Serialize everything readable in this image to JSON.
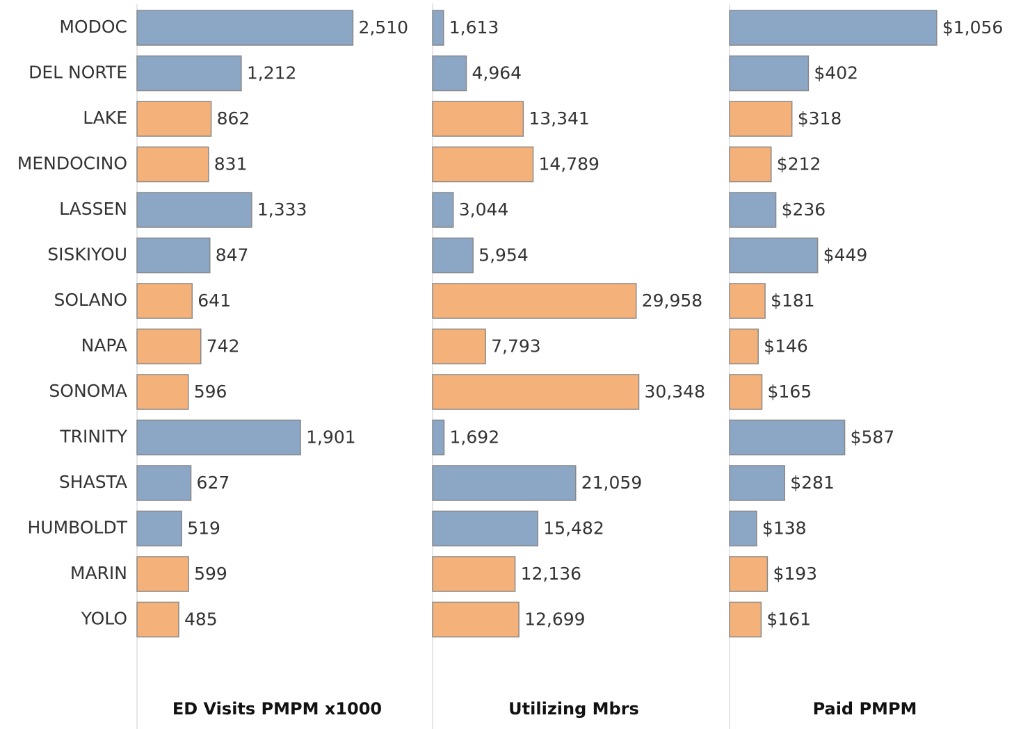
{
  "chart_data": {
    "type": "bar",
    "orientation": "horizontal",
    "categories": [
      "MODOC",
      "DEL NORTE",
      "LAKE",
      "MENDOCINO",
      "LASSEN",
      "SISKIYOU",
      "SOLANO",
      "NAPA",
      "SONOMA",
      "TRINITY",
      "SHASTA",
      "HUMBOLDT",
      "MARIN",
      "YOLO"
    ],
    "colors": [
      "#8ca6c6",
      "#8ca6c6",
      "#f4b27a",
      "#f4b27a",
      "#8ca6c6",
      "#8ca6c6",
      "#f4b27a",
      "#f4b27a",
      "#f4b27a",
      "#8ca6c6",
      "#8ca6c6",
      "#8ca6c6",
      "#f4b27a",
      "#f4b27a"
    ],
    "panels": [
      {
        "xlabel": "ED Visits PMPM x1000",
        "xlim": [
          0,
          3420
        ],
        "values": [
          2510,
          1212,
          862,
          831,
          1333,
          847,
          641,
          742,
          596,
          1901,
          627,
          519,
          599,
          485
        ],
        "value_labels": [
          "2,510",
          "1,212",
          "862",
          "831",
          "1,333",
          "847",
          "641",
          "742",
          "596",
          "1,901",
          "627",
          "519",
          "599",
          "485"
        ]
      },
      {
        "xlabel": "Utilizing Mbrs",
        "xlim": [
          0,
          43600
        ],
        "values": [
          1613,
          4964,
          13341,
          14789,
          3044,
          5954,
          29958,
          7793,
          30348,
          1692,
          21059,
          15482,
          12136,
          12699
        ],
        "value_labels": [
          "1,613",
          "4,964",
          "13,341",
          "14,789",
          "3,044",
          "5,954",
          "29,958",
          "7,793",
          "30,348",
          "1,692",
          "21,059",
          "15,482",
          "12,136",
          "12,699"
        ]
      },
      {
        "xlabel": "Paid PMPM",
        "xlim": [
          0,
          1450
        ],
        "values": [
          1056,
          402,
          318,
          212,
          236,
          449,
          181,
          146,
          165,
          587,
          281,
          138,
          193,
          161
        ],
        "value_labels": [
          "$1,056",
          "$402",
          "$318",
          "$212",
          "$236",
          "$449",
          "$181",
          "$146",
          "$165",
          "$587",
          "$281",
          "$138",
          "$193",
          "$161"
        ]
      }
    ]
  }
}
